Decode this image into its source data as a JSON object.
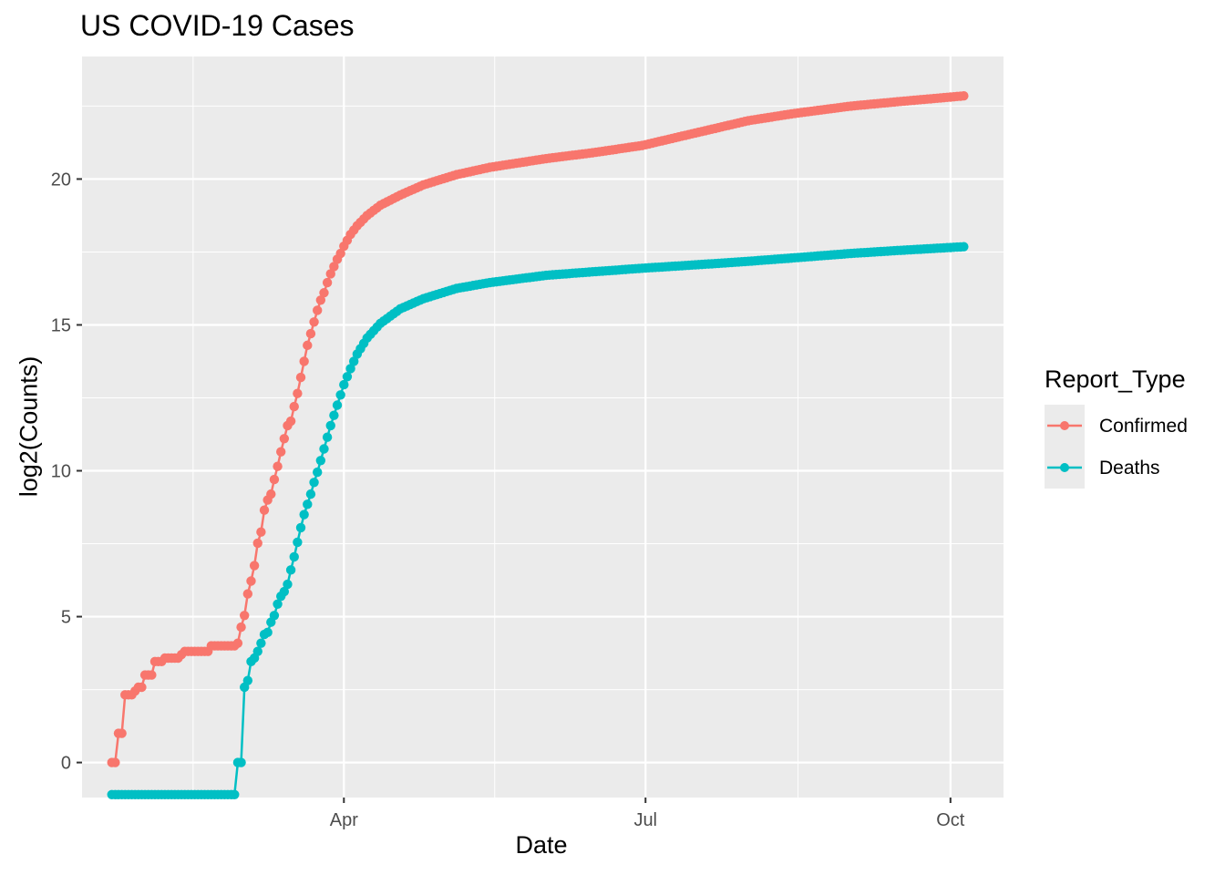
{
  "title": "US COVID-19 Cases",
  "legend": {
    "title": "Report_Type",
    "items": [
      {
        "label": "Confirmed",
        "color": "#F8766D"
      },
      {
        "label": "Deaths",
        "color": "#00BFC4"
      }
    ]
  },
  "chart_data": {
    "type": "line",
    "title": "US COVID-19 Cases",
    "xlabel": "Date",
    "ylabel": "log2(Counts)",
    "x_tick_labels": [
      "Apr",
      "Jul",
      "Oct"
    ],
    "x_ticks": [
      "2020-04-01",
      "2020-07-01",
      "2020-10-01"
    ],
    "y_ticks": [
      0,
      5,
      10,
      15,
      20
    ],
    "xlim": [
      "2020-01-13",
      "2020-10-17"
    ],
    "ylim": [
      -1.2,
      24.2
    ],
    "grid": true,
    "legend_position": "right",
    "markers": true,
    "series": [
      {
        "name": "Confirmed",
        "color": "#F8766D",
        "points": [
          [
            "2020-01-22",
            0
          ],
          [
            "2020-01-23",
            0
          ],
          [
            "2020-01-24",
            1
          ],
          [
            "2020-01-25",
            1
          ],
          [
            "2020-01-26",
            2.32
          ],
          [
            "2020-01-28",
            2.32
          ],
          [
            "2020-01-30",
            2.58
          ],
          [
            "2020-01-31",
            2.58
          ],
          [
            "2020-02-01",
            3
          ],
          [
            "2020-02-03",
            3
          ],
          [
            "2020-02-04",
            3.46
          ],
          [
            "2020-02-06",
            3.46
          ],
          [
            "2020-02-07",
            3.58
          ],
          [
            "2020-02-11",
            3.58
          ],
          [
            "2020-02-12",
            3.7
          ],
          [
            "2020-02-13",
            3.81
          ],
          [
            "2020-02-20",
            3.81
          ],
          [
            "2020-02-21",
            4
          ],
          [
            "2020-02-28",
            4
          ],
          [
            "2020-02-29",
            4.09
          ],
          [
            "2020-03-01",
            4.64
          ],
          [
            "2020-03-02",
            5.04
          ],
          [
            "2020-03-03",
            5.78
          ],
          [
            "2020-03-04",
            6.22
          ],
          [
            "2020-03-05",
            6.75
          ],
          [
            "2020-03-06",
            7.52
          ],
          [
            "2020-03-07",
            7.9
          ],
          [
            "2020-03-08",
            8.65
          ],
          [
            "2020-03-09",
            9.0
          ],
          [
            "2020-03-10",
            9.2
          ],
          [
            "2020-03-11",
            9.7
          ],
          [
            "2020-03-12",
            10.15
          ],
          [
            "2020-03-13",
            10.65
          ],
          [
            "2020-03-14",
            11.1
          ],
          [
            "2020-03-15",
            11.55
          ],
          [
            "2020-03-16",
            11.7
          ],
          [
            "2020-03-17",
            12.2
          ],
          [
            "2020-03-18",
            12.65
          ],
          [
            "2020-03-19",
            13.2
          ],
          [
            "2020-03-20",
            13.75
          ],
          [
            "2020-03-21",
            14.3
          ],
          [
            "2020-03-22",
            14.7
          ],
          [
            "2020-03-23",
            15.1
          ],
          [
            "2020-03-24",
            15.5
          ],
          [
            "2020-03-25",
            15.85
          ],
          [
            "2020-03-26",
            16.1
          ],
          [
            "2020-03-27",
            16.45
          ],
          [
            "2020-03-28",
            16.75
          ],
          [
            "2020-03-29",
            17.0
          ],
          [
            "2020-03-30",
            17.25
          ],
          [
            "2020-03-31",
            17.45
          ],
          [
            "2020-04-01",
            17.7
          ],
          [
            "2020-04-03",
            18.1
          ],
          [
            "2020-04-05",
            18.4
          ],
          [
            "2020-04-08",
            18.75
          ],
          [
            "2020-04-12",
            19.1
          ],
          [
            "2020-04-18",
            19.45
          ],
          [
            "2020-04-25",
            19.8
          ],
          [
            "2020-05-05",
            20.15
          ],
          [
            "2020-05-15",
            20.4
          ],
          [
            "2020-06-01",
            20.7
          ],
          [
            "2020-06-15",
            20.9
          ],
          [
            "2020-06-30",
            21.15
          ],
          [
            "2020-07-15",
            21.55
          ],
          [
            "2020-08-01",
            22.0
          ],
          [
            "2020-08-15",
            22.25
          ],
          [
            "2020-09-01",
            22.5
          ],
          [
            "2020-09-15",
            22.65
          ],
          [
            "2020-10-05",
            22.85
          ]
        ]
      },
      {
        "name": "Deaths",
        "color": "#00BFC4",
        "points": [
          [
            "2020-01-22",
            -1.1
          ],
          [
            "2020-02-28",
            -1.1
          ],
          [
            "2020-02-29",
            0
          ],
          [
            "2020-03-01",
            0
          ],
          [
            "2020-03-02",
            2.58
          ],
          [
            "2020-03-03",
            2.81
          ],
          [
            "2020-03-04",
            3.46
          ],
          [
            "2020-03-05",
            3.58
          ],
          [
            "2020-03-06",
            3.81
          ],
          [
            "2020-03-07",
            4.09
          ],
          [
            "2020-03-08",
            4.39
          ],
          [
            "2020-03-09",
            4.46
          ],
          [
            "2020-03-10",
            4.81
          ],
          [
            "2020-03-11",
            5.04
          ],
          [
            "2020-03-12",
            5.43
          ],
          [
            "2020-03-13",
            5.7
          ],
          [
            "2020-03-14",
            5.86
          ],
          [
            "2020-03-15",
            6.11
          ],
          [
            "2020-03-16",
            6.6
          ],
          [
            "2020-03-17",
            7.05
          ],
          [
            "2020-03-18",
            7.55
          ],
          [
            "2020-03-19",
            8.05
          ],
          [
            "2020-03-20",
            8.5
          ],
          [
            "2020-03-21",
            8.85
          ],
          [
            "2020-03-22",
            9.2
          ],
          [
            "2020-03-23",
            9.6
          ],
          [
            "2020-03-24",
            9.95
          ],
          [
            "2020-03-25",
            10.35
          ],
          [
            "2020-03-26",
            10.75
          ],
          [
            "2020-03-27",
            11.15
          ],
          [
            "2020-03-28",
            11.55
          ],
          [
            "2020-03-29",
            11.9
          ],
          [
            "2020-03-30",
            12.25
          ],
          [
            "2020-03-31",
            12.6
          ],
          [
            "2020-04-01",
            12.95
          ],
          [
            "2020-04-03",
            13.5
          ],
          [
            "2020-04-05",
            14.0
          ],
          [
            "2020-04-08",
            14.55
          ],
          [
            "2020-04-12",
            15.05
          ],
          [
            "2020-04-18",
            15.55
          ],
          [
            "2020-04-25",
            15.9
          ],
          [
            "2020-05-05",
            16.25
          ],
          [
            "2020-05-15",
            16.45
          ],
          [
            "2020-06-01",
            16.7
          ],
          [
            "2020-06-15",
            16.82
          ],
          [
            "2020-07-01",
            16.95
          ],
          [
            "2020-07-15",
            17.05
          ],
          [
            "2020-08-01",
            17.18
          ],
          [
            "2020-08-15",
            17.3
          ],
          [
            "2020-09-01",
            17.45
          ],
          [
            "2020-09-15",
            17.55
          ],
          [
            "2020-10-05",
            17.68
          ]
        ]
      }
    ]
  }
}
